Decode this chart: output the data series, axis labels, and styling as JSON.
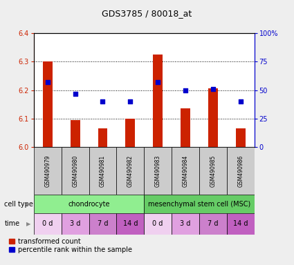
{
  "title": "GDS3785 / 80018_at",
  "samples": [
    "GSM490979",
    "GSM490980",
    "GSM490981",
    "GSM490982",
    "GSM490983",
    "GSM490984",
    "GSM490985",
    "GSM490986"
  ],
  "red_values": [
    6.3,
    6.095,
    6.065,
    6.1,
    6.325,
    6.135,
    6.205,
    6.065
  ],
  "blue_percentiles": [
    57,
    47,
    40,
    40,
    57,
    50,
    51,
    40
  ],
  "ylim_left": [
    6.0,
    6.4
  ],
  "ylim_right": [
    0,
    100
  ],
  "yticks_left": [
    6.0,
    6.1,
    6.2,
    6.3,
    6.4
  ],
  "yticks_right": [
    0,
    25,
    50,
    75,
    100
  ],
  "ytick_labels_right": [
    "0",
    "25",
    "50",
    "75",
    "100%"
  ],
  "cell_type_groups": [
    {
      "label": "chondrocyte",
      "start": 0,
      "end": 4,
      "color": "#90ee90"
    },
    {
      "label": "mesenchymal stem cell (MSC)",
      "start": 4,
      "end": 8,
      "color": "#66cc66"
    }
  ],
  "time_labels": [
    "0 d",
    "3 d",
    "7 d",
    "14 d",
    "0 d",
    "3 d",
    "7 d",
    "14 d"
  ],
  "time_colors": [
    "#f0d0f0",
    "#e0a0e0",
    "#cc80cc",
    "#c060c0",
    "#f0d0f0",
    "#e0a0e0",
    "#cc80cc",
    "#c060c0"
  ],
  "bar_color": "#cc2200",
  "dot_color": "#0000cc",
  "bar_baseline": 6.0,
  "bar_width": 0.35,
  "dot_size": 22,
  "grid_color": "#000000",
  "bg_color": "#eeeeee",
  "plot_bg": "#ffffff",
  "legend_red_label": "transformed count",
  "legend_blue_label": "percentile rank within the sample",
  "left_tick_color": "#cc2200",
  "right_tick_color": "#0000cc",
  "cell_type_label": "cell type",
  "time_label": "time",
  "sample_box_color": "#cccccc",
  "title_fontsize": 9,
  "tick_fontsize": 7,
  "label_fontsize": 7,
  "sample_fontsize": 5.5,
  "legend_fontsize": 7
}
